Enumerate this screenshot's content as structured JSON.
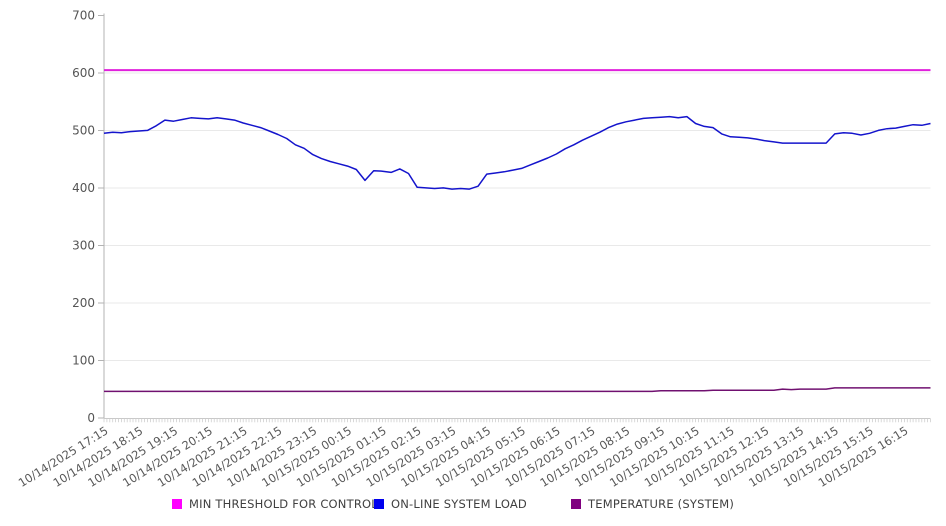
{
  "chart_data": {
    "type": "line",
    "title": "",
    "xlabel": "",
    "ylabel": "",
    "ylim": [
      0,
      700
    ],
    "y_ticks": [
      0,
      100,
      200,
      300,
      400,
      500,
      600,
      700
    ],
    "grid": "horizontal",
    "legend_position": "bottom",
    "x_minutes_per_point": 15,
    "x_tick_labels": [
      "10/14/2025 17:15",
      "10/14/2025 18:15",
      "10/14/2025 19:15",
      "10/14/2025 20:15",
      "10/14/2025 21:15",
      "10/14/2025 22:15",
      "10/14/2025 23:15",
      "10/15/2025 00:15",
      "10/15/2025 01:15",
      "10/15/2025 02:15",
      "10/15/2025 03:15",
      "10/15/2025 04:15",
      "10/15/2025 05:15",
      "10/15/2025 06:15",
      "10/15/2025 07:15",
      "10/15/2025 08:15",
      "10/15/2025 09:15",
      "10/15/2025 10:15",
      "10/15/2025 11:15",
      "10/15/2025 12:15",
      "10/15/2025 13:15",
      "10/15/2025 14:15",
      "10/15/2025 15:15",
      "10/15/2025 16:15"
    ],
    "series": [
      {
        "name": "MIN THRESHOLD FOR CONTROL",
        "color": "#ff00ff",
        "line_color": "#e020dc",
        "line_width": 2,
        "value": 605
      },
      {
        "name": "ON-LINE SYSTEM LOAD",
        "color": "#0000ee",
        "line_color": "#1414cc",
        "line_width": 1.5,
        "values": [
          495,
          497,
          496,
          498,
          499,
          500,
          508,
          518,
          516,
          519,
          522,
          521,
          520,
          522,
          520,
          518,
          513,
          509,
          505,
          499,
          493,
          486,
          475,
          469,
          458,
          451,
          446,
          442,
          438,
          432,
          413,
          430,
          429,
          427,
          433,
          425,
          401,
          400,
          399,
          400,
          398,
          399,
          398,
          403,
          424,
          426,
          428,
          431,
          434,
          440,
          446,
          452,
          459,
          468,
          475,
          483,
          490,
          497,
          505,
          511,
          515,
          518,
          521,
          522,
          523,
          524,
          522,
          524,
          512,
          507,
          505,
          494,
          489,
          488,
          487,
          485,
          482,
          480,
          478,
          478,
          478,
          478,
          478,
          478,
          494,
          496,
          495,
          492,
          495,
          500,
          503,
          504,
          507,
          510,
          509,
          512
        ]
      },
      {
        "name": "TEMPERATURE (SYSTEM)",
        "color": "#800080",
        "line_color": "#701070",
        "line_width": 1.5,
        "values": [
          46,
          46,
          46,
          46,
          46,
          46,
          46,
          46,
          46,
          46,
          46,
          46,
          46,
          46,
          46,
          46,
          46,
          46,
          46,
          46,
          46,
          46,
          46,
          46,
          46,
          46,
          46,
          46,
          46,
          46,
          46,
          46,
          46,
          46,
          46,
          46,
          46,
          46,
          46,
          46,
          46,
          46,
          46,
          46,
          46,
          46,
          46,
          46,
          46,
          46,
          46,
          46,
          46,
          46,
          46,
          46,
          46,
          46,
          46,
          46,
          46,
          46,
          46,
          46,
          47,
          47,
          47,
          47,
          47,
          47,
          48,
          48,
          48,
          48,
          48,
          48,
          48,
          48,
          50,
          49,
          50,
          50,
          50,
          50,
          52,
          52,
          52,
          52,
          52,
          52,
          52,
          52,
          52,
          52,
          52,
          52
        ]
      }
    ]
  }
}
